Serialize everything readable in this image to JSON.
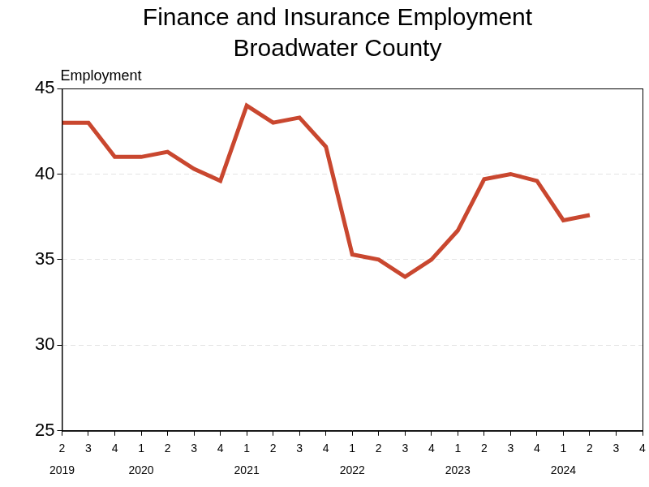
{
  "chart_data": {
    "type": "line",
    "title": [
      "Finance and Insurance Employment",
      "Broadwater County"
    ],
    "y_label": "Employment",
    "categories": [
      [
        "2",
        "2019"
      ],
      [
        "3"
      ],
      [
        "4"
      ],
      [
        "1",
        "2020"
      ],
      [
        "2"
      ],
      [
        "3"
      ],
      [
        "4"
      ],
      [
        "1",
        "2021"
      ],
      [
        "2"
      ],
      [
        "3"
      ],
      [
        "4"
      ],
      [
        "1",
        "2022"
      ],
      [
        "2"
      ],
      [
        "3"
      ],
      [
        "4"
      ],
      [
        "1",
        "2023"
      ],
      [
        "2"
      ],
      [
        "3"
      ],
      [
        "4"
      ],
      [
        "1",
        "2024"
      ],
      [
        "2"
      ],
      [
        "3"
      ],
      [
        "4"
      ]
    ],
    "values": [
      43,
      43,
      41,
      41,
      41.3,
      40.3,
      39.6,
      44,
      43,
      43.3,
      41.6,
      35.3,
      35,
      34,
      35,
      36.7,
      39.7,
      40,
      39.6,
      37.3,
      37.6,
      null,
      null
    ],
    "color": "#c9472f",
    "ylim": [
      25,
      45
    ],
    "yticks": [
      25,
      30,
      35,
      40,
      45
    ],
    "grid": true
  }
}
